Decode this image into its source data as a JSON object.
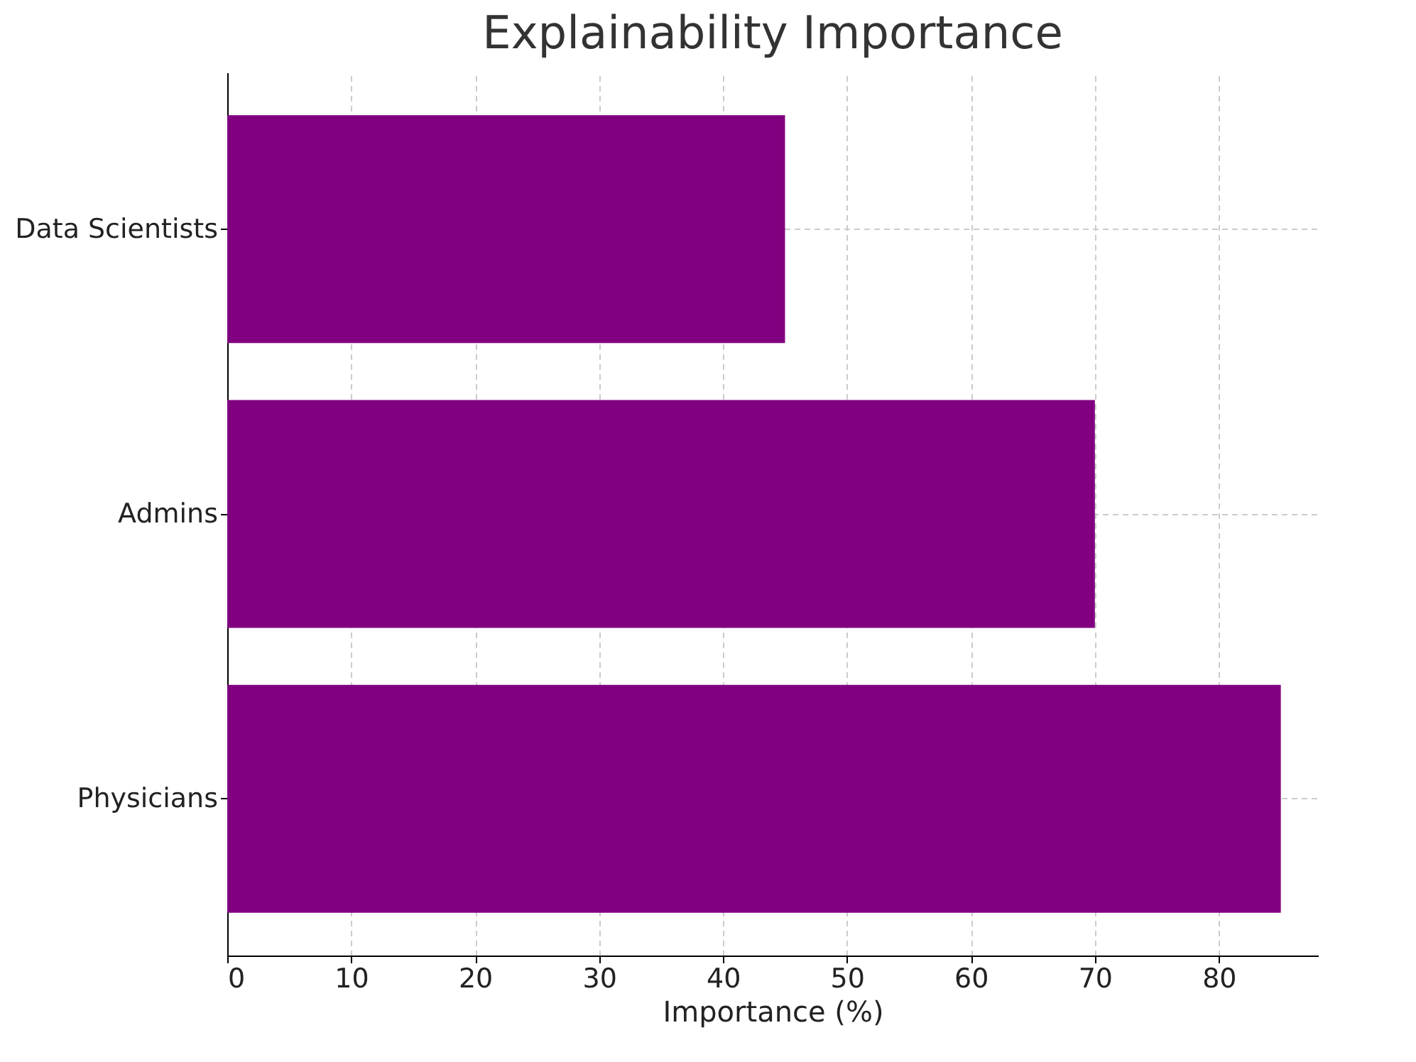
{
  "chart_data": {
    "type": "bar",
    "orientation": "horizontal",
    "title": "Explainability Importance",
    "xlabel": "Importance (%)",
    "categories": [
      "Data Scientists",
      "Admins",
      "Physicians"
    ],
    "values": [
      45,
      70,
      85
    ],
    "color": "#800080",
    "xlim": [
      0,
      88
    ],
    "xticks": [
      0,
      10,
      20,
      30,
      40,
      50,
      60,
      70,
      80
    ],
    "grid": true
  }
}
